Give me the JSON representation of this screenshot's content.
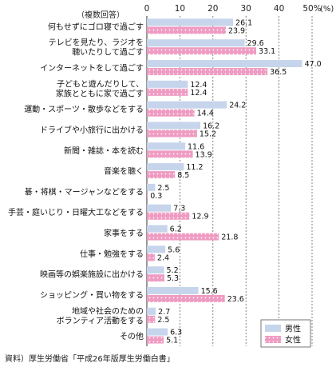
{
  "chart_data": {
    "type": "bar",
    "orientation": "horizontal",
    "note": "（複数回答）",
    "unit": "(%)",
    "xlim": [
      0,
      50
    ],
    "xticks": [
      "0",
      "10",
      "20",
      "30",
      "40",
      "50"
    ],
    "categories": [
      "何もせずにゴロ寝で過ごす",
      "テレビを見たり、ラジオを\n聴いたりして過ごす",
      "インターネットをして過ごす",
      "子どもと遊んだりして、\n家族とともに家で過ごす",
      "運動・スポーツ・散歩などをする",
      "ドライブや小旅行に出かける",
      "新聞・雑誌・本を読む",
      "音楽を聴く",
      "碁・将棋・マージャンなどをする",
      "手芸・庭いじり・日曜大工などをする",
      "家事をする",
      "仕事・勉強をする",
      "映画等の娯楽施設に出かける",
      "ショッピング・買い物をする",
      "地域や社会のための\nボランティア活動をする",
      "その他"
    ],
    "series": [
      {
        "name": "男性",
        "color": "#c6d5ec",
        "values": [
          26.1,
          29.6,
          47.0,
          12.4,
          24.2,
          16.2,
          11.6,
          11.2,
          2.5,
          7.3,
          6.2,
          5.6,
          5.2,
          15.6,
          2.7,
          6.3
        ]
      },
      {
        "name": "女性",
        "color": "#ef9bc2",
        "values": [
          23.9,
          33.1,
          36.5,
          12.4,
          14.4,
          15.2,
          13.9,
          8.5,
          0.3,
          12.9,
          21.8,
          2.4,
          5.3,
          23.6,
          2.5,
          5.1
        ]
      }
    ],
    "value_labels": [
      [
        "26.1",
        "29.6",
        "47.0",
        "12.4",
        "24.2",
        "16.2",
        "11.6",
        "11.2",
        "2.5",
        "7.3",
        "6.2",
        "5.6",
        "5.2",
        "15.6",
        "2.7",
        "6.3"
      ],
      [
        "23.9",
        "33.1",
        "36.5",
        "12.4",
        "14.4",
        "15.2",
        "13.9",
        "8.5",
        "0.3",
        "12.9",
        "21.8",
        "2.4",
        "5.3",
        "23.6",
        "2.5",
        "5.1"
      ]
    ],
    "legend_position": "bottom-right",
    "grid": "dashed vertical",
    "source": "資料）厚生労働省「平成26年版厚生労働白書」"
  }
}
